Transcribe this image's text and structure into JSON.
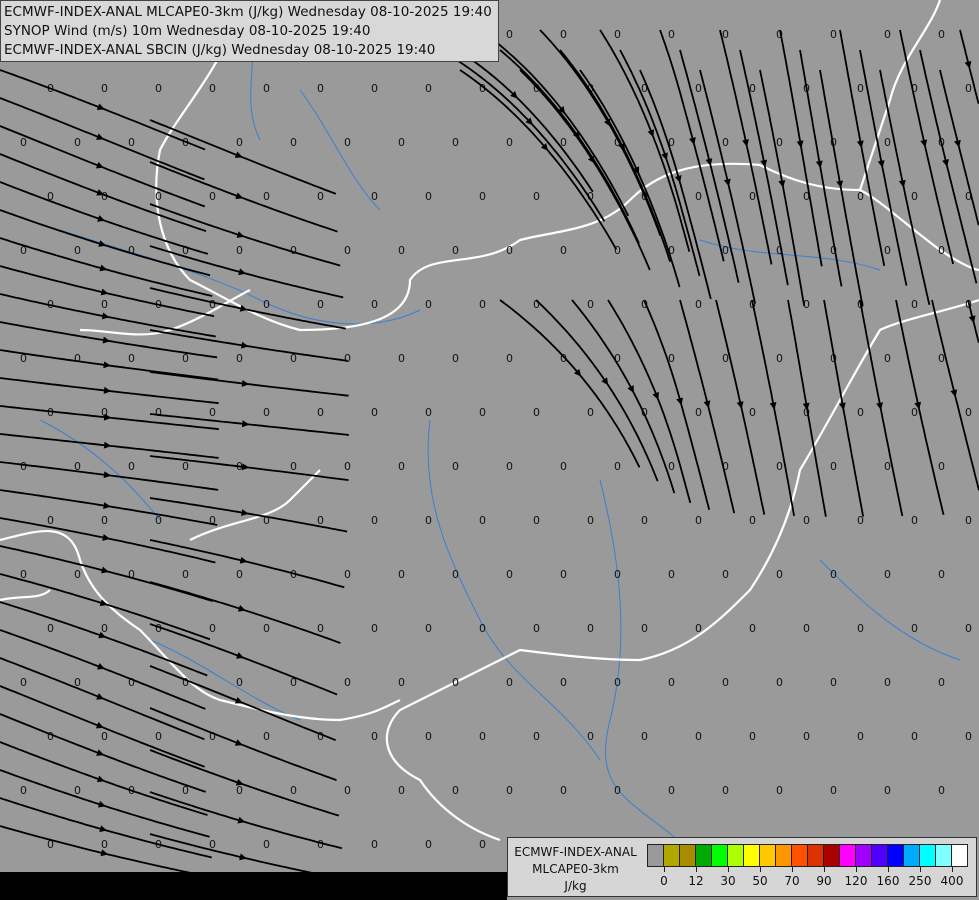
{
  "header": {
    "line1": "ECMWF-INDEX-ANAL MLCAPE0-3km (J/kg) Wednesday 08-10-2025 19:40",
    "line2": "SYNOP Wind (m/s) 10m Wednesday 08-10-2025 19:40",
    "line3": "ECMWF-INDEX-ANAL SBCIN (J/kg) Wednesday 08-10-2025 19:40"
  },
  "legend": {
    "title1": "ECMWF-INDEX-ANAL",
    "title2": "MLCAPE0-3km",
    "unit": "J/kg",
    "colors": [
      "#999999",
      "#b0a800",
      "#a88c00",
      "#00aa00",
      "#00ff00",
      "#aaff00",
      "#ffff00",
      "#ffc800",
      "#ff9600",
      "#ff5000",
      "#dc3200",
      "#aa0000",
      "#ff00ff",
      "#a000ff",
      "#5000ff",
      "#0000ff",
      "#00aaff",
      "#00ffff",
      "#80ffff",
      "#ffffff"
    ],
    "labels": [
      "0",
      "12",
      "30",
      "50",
      "70",
      "90",
      "120",
      "160",
      "250",
      "400"
    ]
  },
  "map": {
    "background": "#9a9a9a",
    "border_color": "#ffffff",
    "river_color": "#3a7fd0",
    "streamline_color": "#000000",
    "cin_value": "0"
  }
}
